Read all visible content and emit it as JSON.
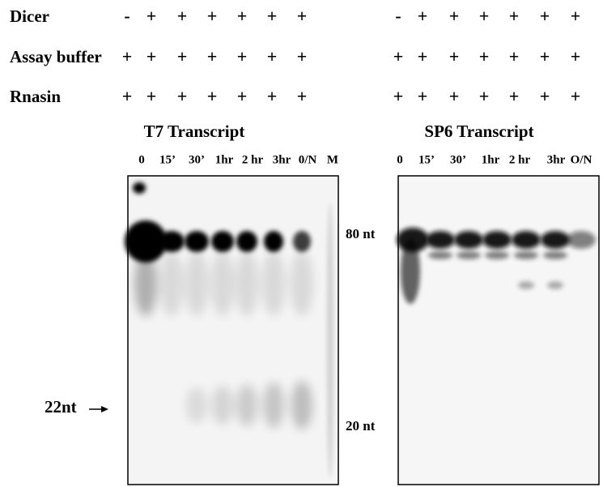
{
  "rows": [
    {
      "label": "Dicer",
      "left": [
        "-",
        "+",
        "+",
        "+",
        "+",
        "+",
        "+"
      ],
      "right": [
        "-",
        "+",
        "+",
        "+",
        "+",
        "+",
        "+"
      ]
    },
    {
      "label": "Assay buffer",
      "left": [
        "+",
        "+",
        "+",
        "+",
        "+",
        "+",
        "+"
      ],
      "right": [
        "+",
        "+",
        "+",
        "+",
        "+",
        "+",
        "+"
      ]
    },
    {
      "label": "Rnasin",
      "left": [
        "+",
        "+",
        "+",
        "+",
        "+",
        "+",
        "+"
      ],
      "right": [
        "+",
        "+",
        "+",
        "+",
        "+",
        "+",
        "+"
      ]
    }
  ],
  "panels": [
    {
      "title": "T7 Transcript",
      "lanes": [
        "0",
        "15’",
        "30’",
        "1hr",
        "2 hr",
        "3hr",
        "0/N",
        "M"
      ],
      "markers": [
        "80 nt",
        "20 nt"
      ],
      "arrow_label": "22nt"
    },
    {
      "title": "SP6 Transcript",
      "lanes": [
        "0",
        "15’",
        "30’",
        "1hr",
        "2 hr",
        "3hr",
        "O/N"
      ]
    }
  ]
}
